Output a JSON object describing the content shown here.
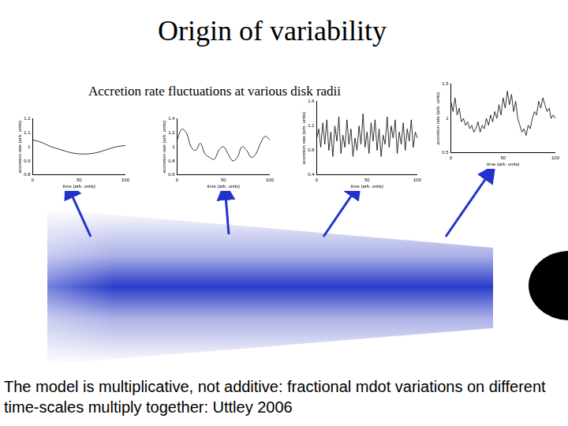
{
  "title": "Origin of variability",
  "heading": "Accretion rate fluctuations at various disk radii",
  "caption": "The model is multiplicative, not additive: fractional mdot variations on different time-scales multiply together: Uttley 2006",
  "chart_data": [
    {
      "type": "line",
      "x_label": "time (arb. units)",
      "y_label": "accretion rate (arb. units)",
      "color": "#000000",
      "grid": false,
      "x": [
        0,
        10,
        20,
        30,
        40,
        50,
        60,
        70,
        80,
        90,
        100
      ],
      "values": [
        1.05,
        1.03,
        1.0,
        0.98,
        0.96,
        0.95,
        0.95,
        0.96,
        0.98,
        1.0,
        1.01
      ],
      "xlim": [
        0,
        100
      ],
      "xticks": [
        0,
        50,
        100
      ],
      "ylim": [
        0.8,
        1.2
      ],
      "yticks": [
        0.8,
        0.9,
        1,
        1.1,
        1.2
      ]
    },
    {
      "type": "line",
      "x_label": "time (arb. units)",
      "y_label": "accretion rate (arb. units)",
      "color": "#000000",
      "grid": false,
      "x": [
        0,
        5,
        10,
        15,
        20,
        25,
        30,
        35,
        40,
        45,
        50,
        55,
        60,
        65,
        70,
        75,
        80,
        85,
        90,
        95,
        100
      ],
      "values": [
        1.1,
        1.25,
        1.2,
        1.0,
        0.95,
        1.05,
        0.9,
        0.85,
        0.82,
        0.95,
        1.0,
        0.9,
        0.8,
        0.85,
        1.0,
        0.95,
        0.85,
        0.9,
        1.05,
        1.15,
        1.1
      ],
      "xlim": [
        0,
        100
      ],
      "xticks": [
        0,
        50,
        100
      ],
      "ylim": [
        0.6,
        1.4
      ],
      "yticks": [
        0.6,
        0.8,
        1,
        1.2,
        1.4
      ]
    },
    {
      "type": "line",
      "x_label": "time (arb. units)",
      "y_label": "accretion rate (arb. units)",
      "color": "#000000",
      "grid": false,
      "x": [
        0,
        2,
        4,
        6,
        8,
        10,
        12,
        14,
        16,
        18,
        20,
        22,
        24,
        26,
        28,
        30,
        32,
        34,
        36,
        38,
        40,
        42,
        44,
        46,
        48,
        50,
        52,
        54,
        56,
        58,
        60,
        62,
        64,
        66,
        68,
        70,
        72,
        74,
        76,
        78,
        80,
        82,
        84,
        86,
        88,
        90,
        92,
        94,
        96,
        98,
        100
      ],
      "values": [
        1.0,
        1.15,
        0.85,
        1.25,
        0.9,
        1.3,
        0.8,
        1.1,
        0.7,
        1.2,
        0.95,
        1.35,
        0.75,
        1.05,
        0.85,
        1.3,
        0.9,
        1.15,
        0.7,
        1.0,
        0.8,
        1.2,
        0.9,
        1.4,
        0.85,
        1.1,
        0.75,
        1.25,
        0.95,
        1.3,
        0.8,
        1.15,
        0.7,
        1.05,
        0.9,
        1.35,
        0.85,
        1.2,
        1.0,
        1.3,
        0.75,
        1.1,
        0.9,
        1.25,
        0.8,
        1.15,
        0.95,
        1.3,
        0.85,
        1.1,
        1.0
      ],
      "xlim": [
        0,
        100
      ],
      "xticks": [
        0,
        50,
        100
      ],
      "ylim": [
        0.4,
        1.6
      ],
      "yticks": [
        0.4,
        0.8,
        1.2,
        1.6
      ]
    },
    {
      "type": "line",
      "x_label": "time (arb. units)",
      "y_label": "accretion rate (arb. units)",
      "color": "#000000",
      "grid": false,
      "x": [
        0,
        2,
        4,
        6,
        8,
        10,
        12,
        14,
        16,
        18,
        20,
        22,
        24,
        26,
        28,
        30,
        32,
        34,
        36,
        38,
        40,
        42,
        44,
        46,
        48,
        50,
        52,
        54,
        56,
        58,
        60,
        62,
        64,
        66,
        68,
        70,
        72,
        74,
        76,
        78,
        80,
        82,
        84,
        86,
        88,
        90,
        92,
        94,
        96,
        98,
        100
      ],
      "values": [
        1.25,
        1.1,
        1.3,
        1.05,
        1.15,
        0.95,
        1.0,
        0.9,
        0.95,
        0.85,
        0.9,
        0.8,
        0.85,
        0.95,
        0.8,
        0.9,
        0.85,
        1.0,
        0.9,
        1.05,
        0.95,
        1.1,
        1.0,
        1.2,
        1.05,
        1.3,
        1.15,
        1.4,
        1.2,
        1.35,
        1.1,
        1.25,
        1.0,
        0.9,
        0.8,
        0.85,
        0.75,
        0.9,
        0.85,
        1.0,
        1.1,
        1.05,
        1.25,
        1.15,
        1.3,
        1.2,
        1.1,
        1.15,
        1.0,
        1.05,
        1.0
      ],
      "xlim": [
        0,
        100
      ],
      "xticks": [
        0,
        50,
        100
      ],
      "ylim": [
        0.5,
        1.5
      ],
      "yticks": [
        0.5,
        1,
        1.5
      ]
    }
  ]
}
